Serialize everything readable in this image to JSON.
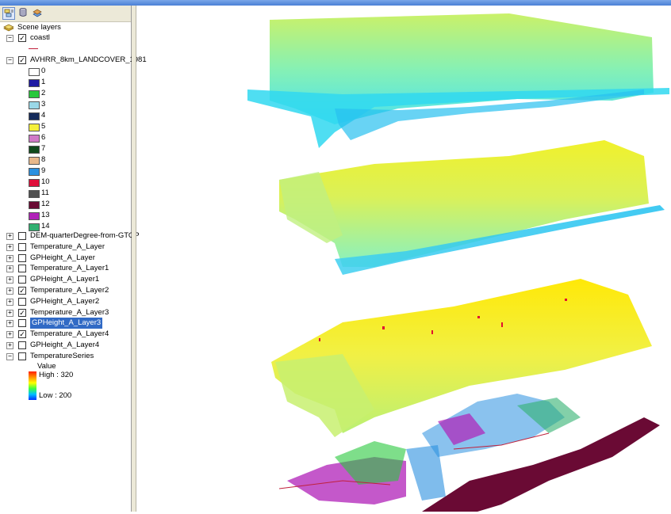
{
  "toc": {
    "root_label": "Scene layers",
    "coast_label": "coastl",
    "landcover_label": "AVHRR_8km_LANDCOVER_1981",
    "legend": [
      {
        "label": "0",
        "color": "#ffffff"
      },
      {
        "label": "1",
        "color": "#1f1aa3"
      },
      {
        "label": "2",
        "color": "#28c83c"
      },
      {
        "label": "3",
        "color": "#9ad8e8"
      },
      {
        "label": "4",
        "color": "#142a5a"
      },
      {
        "label": "5",
        "color": "#f5f03a"
      },
      {
        "label": "6",
        "color": "#d07ac8"
      },
      {
        "label": "7",
        "color": "#0f4a1c"
      },
      {
        "label": "8",
        "color": "#e8b88a"
      },
      {
        "label": "9",
        "color": "#2a90e0"
      },
      {
        "label": "10",
        "color": "#e0103c"
      },
      {
        "label": "11",
        "color": "#505050"
      },
      {
        "label": "12",
        "color": "#6a0a34"
      },
      {
        "label": "13",
        "color": "#b020b8"
      },
      {
        "label": "14",
        "color": "#30b070"
      }
    ],
    "layers": [
      {
        "label": "DEM-quarterDegree-from-GTOP",
        "checked": false,
        "selected": false
      },
      {
        "label": "Temperature_A_Layer",
        "checked": false,
        "selected": false
      },
      {
        "label": "GPHeight_A_Layer",
        "checked": false,
        "selected": false
      },
      {
        "label": "Temperature_A_Layer1",
        "checked": false,
        "selected": false
      },
      {
        "label": "GPHeight_A_Layer1",
        "checked": false,
        "selected": false
      },
      {
        "label": "Temperature_A_Layer2",
        "checked": true,
        "selected": false
      },
      {
        "label": "GPHeight_A_Layer2",
        "checked": false,
        "selected": false
      },
      {
        "label": "Temperature_A_Layer3",
        "checked": true,
        "selected": false
      },
      {
        "label": "GPHeight_A_Layer3",
        "checked": false,
        "selected": true
      },
      {
        "label": "Temperature_A_Layer4",
        "checked": true,
        "selected": false
      },
      {
        "label": "GPHeight_A_Layer4",
        "checked": false,
        "selected": false
      },
      {
        "label": "TemperatureSeries",
        "checked": false,
        "selected": false
      }
    ],
    "ramp": {
      "title": "Value",
      "high": "High : 320",
      "low": "Low : 200"
    }
  },
  "colors": {
    "selection": "#316ac5",
    "coast_line": "#c0203c"
  }
}
